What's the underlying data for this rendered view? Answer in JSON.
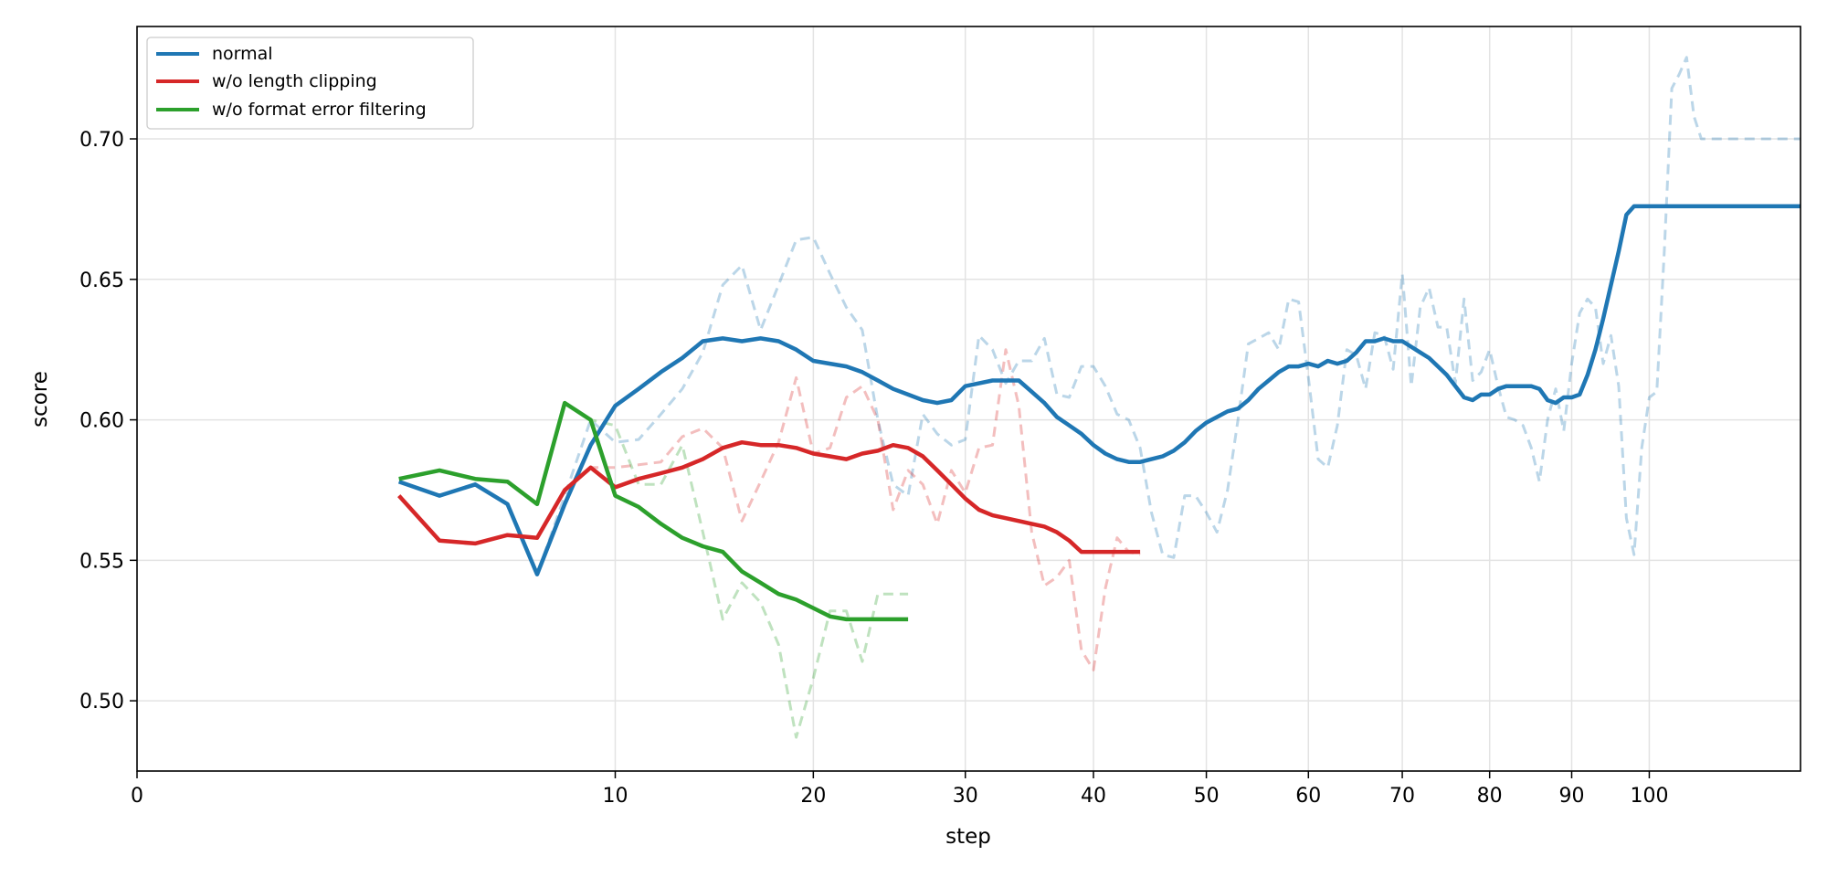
{
  "chart_data": {
    "type": "line",
    "title": "",
    "xlabel": "step",
    "ylabel": "score",
    "x_scale": "sqrt",
    "xlim": [
      0,
      121
    ],
    "ylim": [
      0.475,
      0.74
    ],
    "xticks": [
      0,
      10,
      20,
      30,
      40,
      50,
      60,
      70,
      80,
      90,
      100
    ],
    "yticks": [
      0.5,
      0.55,
      0.6,
      0.65,
      0.7
    ],
    "grid": true,
    "legend_position": "top-left",
    "series": [
      {
        "name": "normal",
        "color": "#1f77b4",
        "x": [
          3,
          4,
          5,
          6,
          7,
          8,
          9,
          10,
          11,
          12,
          13,
          14,
          15,
          16,
          17,
          18,
          19,
          20,
          21,
          22,
          23,
          24,
          25,
          26,
          27,
          28,
          29,
          30,
          31,
          32,
          33,
          34,
          35,
          36,
          37,
          38,
          39,
          40,
          41,
          42,
          43,
          44,
          45,
          46,
          47,
          48,
          49,
          50,
          51,
          52,
          53,
          54,
          55,
          56,
          57,
          58,
          59,
          60,
          61,
          62,
          63,
          64,
          65,
          66,
          67,
          68,
          69,
          70,
          71,
          72,
          73,
          74,
          75,
          76,
          77,
          78,
          79,
          80,
          81,
          82,
          83,
          84,
          85,
          86,
          87,
          88,
          89,
          90,
          91,
          92,
          93,
          94,
          95,
          96,
          97,
          98,
          99,
          100,
          101,
          102,
          103,
          104,
          105,
          106,
          107,
          108,
          109,
          110,
          111,
          112,
          113,
          114,
          115,
          116,
          117,
          118,
          119,
          120,
          121
        ],
        "raw": [
          0.578,
          0.573,
          0.577,
          0.57,
          0.545,
          0.573,
          0.6,
          0.592,
          0.593,
          0.602,
          0.611,
          0.624,
          0.648,
          0.655,
          0.632,
          0.648,
          0.664,
          0.665,
          0.652,
          0.64,
          0.632,
          0.6,
          0.577,
          0.573,
          0.602,
          0.595,
          0.591,
          0.593,
          0.63,
          0.625,
          0.613,
          0.621,
          0.621,
          0.629,
          0.609,
          0.608,
          0.619,
          0.619,
          0.612,
          0.602,
          0.6,
          0.59,
          0.567,
          0.552,
          0.551,
          0.573,
          0.573,
          0.567,
          0.56,
          0.575,
          0.6,
          0.627,
          0.629,
          0.631,
          0.625,
          0.643,
          0.642,
          0.615,
          0.586,
          0.583,
          0.598,
          0.625,
          0.623,
          0.611,
          0.631,
          0.63,
          0.618,
          0.652,
          0.612,
          0.64,
          0.647,
          0.633,
          0.633,
          0.613,
          0.643,
          0.614,
          0.617,
          0.625,
          0.612,
          0.601,
          0.6,
          0.598,
          0.59,
          0.578,
          0.6,
          0.611,
          0.596,
          0.62,
          0.638,
          0.643,
          0.64,
          0.62,
          0.63,
          0.612,
          0.565,
          0.552,
          0.59,
          0.608,
          0.61,
          0.66,
          0.718,
          0.723,
          0.729,
          0.708,
          0.7,
          0.7,
          0.7,
          0.7,
          0.7,
          0.7,
          0.7,
          0.7,
          0.7,
          0.7,
          0.7,
          0.7,
          0.7,
          0.7,
          0.7
        ],
        "smoothed": [
          0.578,
          0.573,
          0.577,
          0.57,
          0.545,
          0.57,
          0.591,
          0.605,
          0.611,
          0.617,
          0.622,
          0.628,
          0.629,
          0.628,
          0.629,
          0.628,
          0.625,
          0.621,
          0.62,
          0.619,
          0.617,
          0.614,
          0.611,
          0.609,
          0.607,
          0.606,
          0.607,
          0.612,
          0.613,
          0.614,
          0.614,
          0.614,
          0.61,
          0.606,
          0.601,
          0.598,
          0.595,
          0.591,
          0.588,
          0.586,
          0.585,
          0.585,
          0.586,
          0.587,
          0.589,
          0.592,
          0.596,
          0.599,
          0.601,
          0.603,
          0.604,
          0.607,
          0.611,
          0.614,
          0.617,
          0.619,
          0.619,
          0.62,
          0.619,
          0.621,
          0.62,
          0.621,
          0.624,
          0.628,
          0.628,
          0.629,
          0.628,
          0.628,
          0.626,
          0.624,
          0.622,
          0.619,
          0.616,
          0.612,
          0.608,
          0.607,
          0.609,
          0.609,
          0.611,
          0.612,
          0.612,
          0.612,
          0.612,
          0.611,
          0.607,
          0.606,
          0.608,
          0.608,
          0.609,
          0.616,
          0.625,
          0.636,
          0.648,
          0.66,
          0.673,
          0.676,
          0.676,
          0.676,
          0.676,
          0.676,
          0.676,
          0.676,
          0.676,
          0.676,
          0.676,
          0.676,
          0.676,
          0.676,
          0.676,
          0.676,
          0.676,
          0.676,
          0.676,
          0.676,
          0.676,
          0.676,
          0.676,
          0.676,
          0.676
        ]
      },
      {
        "name": "w/o length clipping",
        "color": "#d62728",
        "x": [
          3,
          4,
          5,
          6,
          7,
          8,
          9,
          10,
          11,
          12,
          13,
          14,
          15,
          16,
          17,
          18,
          19,
          20,
          21,
          22,
          23,
          24,
          25,
          26,
          27,
          28,
          29,
          30,
          31,
          32,
          33,
          34,
          35,
          36,
          37,
          38,
          39,
          40,
          41,
          42,
          43,
          44
        ],
        "raw": [
          0.573,
          0.557,
          0.556,
          0.559,
          0.558,
          0.575,
          0.583,
          0.583,
          0.584,
          0.585,
          0.594,
          0.597,
          0.59,
          0.564,
          0.578,
          0.592,
          0.615,
          0.588,
          0.59,
          0.608,
          0.612,
          0.6,
          0.568,
          0.582,
          0.577,
          0.563,
          0.582,
          0.574,
          0.59,
          0.591,
          0.625,
          0.605,
          0.56,
          0.541,
          0.544,
          0.55,
          0.518,
          0.511,
          0.54,
          0.558,
          0.553,
          0.552
        ],
        "smoothed": [
          0.573,
          0.557,
          0.556,
          0.559,
          0.558,
          0.575,
          0.583,
          0.576,
          0.579,
          0.581,
          0.583,
          0.586,
          0.59,
          0.592,
          0.591,
          0.591,
          0.59,
          0.588,
          0.587,
          0.586,
          0.588,
          0.589,
          0.591,
          0.59,
          0.587,
          0.582,
          0.577,
          0.572,
          0.568,
          0.566,
          0.565,
          0.564,
          0.563,
          0.562,
          0.56,
          0.557,
          0.553,
          0.553,
          0.553,
          0.553,
          0.553,
          0.553
        ]
      },
      {
        "name": "w/o format error filtering",
        "color": "#2ca02c",
        "x": [
          3,
          4,
          5,
          6,
          7,
          8,
          9,
          10,
          11,
          12,
          13,
          14,
          15,
          16,
          17,
          18,
          19,
          20,
          21,
          22,
          23,
          24,
          25,
          26
        ],
        "raw": [
          0.579,
          0.582,
          0.579,
          0.578,
          0.57,
          0.606,
          0.6,
          0.598,
          0.577,
          0.577,
          0.591,
          0.56,
          0.529,
          0.542,
          0.535,
          0.52,
          0.487,
          0.508,
          0.532,
          0.532,
          0.514,
          0.538,
          0.538,
          0.538
        ],
        "smoothed": [
          0.579,
          0.582,
          0.579,
          0.578,
          0.57,
          0.606,
          0.6,
          0.573,
          0.569,
          0.563,
          0.558,
          0.555,
          0.553,
          0.546,
          0.542,
          0.538,
          0.536,
          0.533,
          0.53,
          0.529,
          0.529,
          0.529,
          0.529,
          0.529
        ]
      }
    ]
  }
}
